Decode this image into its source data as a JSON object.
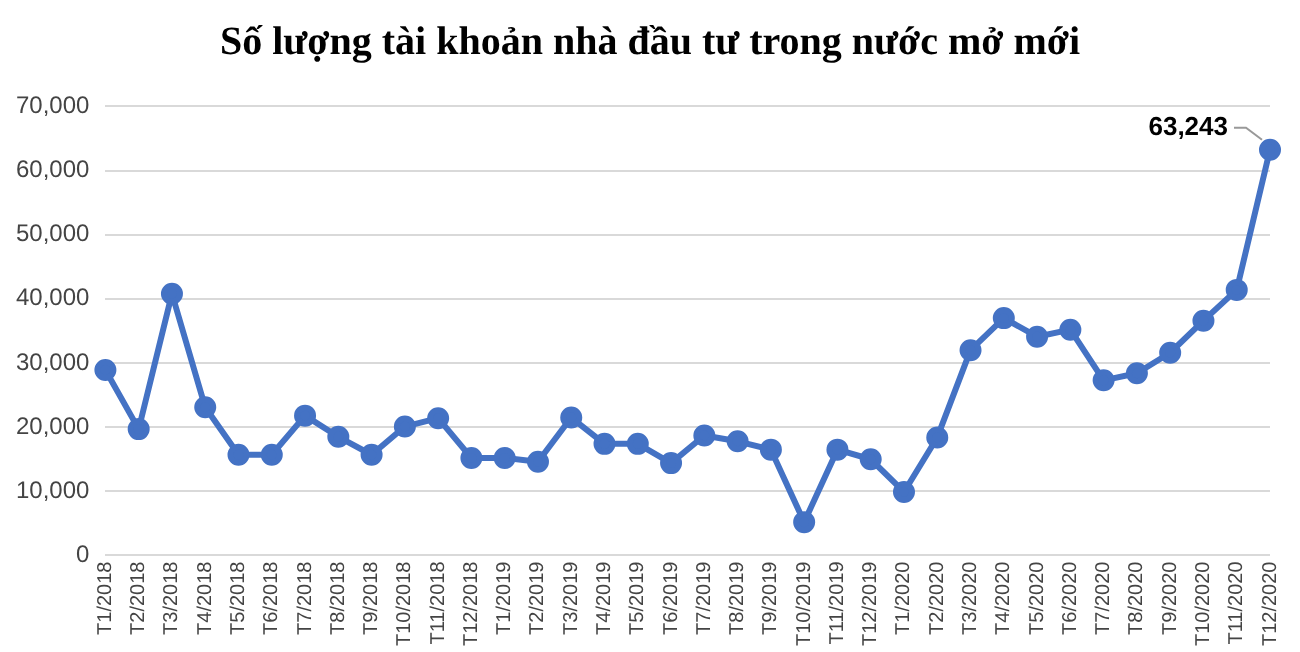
{
  "chart_data": {
    "type": "line",
    "title": "Số lượng tài khoản nhà đầu tư trong nước mở mới",
    "categories": [
      "T1/2018",
      "T2/2018",
      "T3/2018",
      "T4/2018",
      "T5/2018",
      "T6/2018",
      "T7/2018",
      "T8/2018",
      "T9/2018",
      "T10/2018",
      "T11/2018",
      "T12/2018",
      "T1/2019",
      "T2/2019",
      "T3/2019",
      "T4/2019",
      "T5/2019",
      "T6/2019",
      "T7/2019",
      "T8/2019",
      "T9/2019",
      "T10/2019",
      "T11/2019",
      "T12/2019",
      "T1/2020",
      "T2/2020",
      "T3/2020",
      "T4/2020",
      "T5/2020",
      "T6/2020",
      "T7/2020",
      "T8/2020",
      "T9/2020",
      "T10/2020",
      "T11/2020",
      "T12/2020"
    ],
    "series": [
      {
        "color": "#4472c4",
        "values": [
          28900,
          19700,
          40800,
          23100,
          15700,
          15700,
          21800,
          18500,
          15700,
          20100,
          21400,
          15200,
          15200,
          14600,
          21500,
          17400,
          17400,
          14400,
          18700,
          17800,
          16500,
          5200,
          16500,
          15000,
          9900,
          18400,
          32000,
          37000,
          34100,
          35200,
          27300,
          28400,
          31600,
          36600,
          41400,
          63243
        ],
        "value_labels": [
          null,
          null,
          null,
          null,
          null,
          null,
          null,
          null,
          null,
          null,
          null,
          null,
          null,
          null,
          null,
          null,
          null,
          null,
          null,
          null,
          null,
          null,
          null,
          null,
          null,
          null,
          null,
          null,
          null,
          null,
          null,
          null,
          null,
          null,
          null,
          "63,243"
        ]
      }
    ],
    "ylim": [
      0,
      70000
    ],
    "yticks": [
      {
        "value": 0,
        "label": "0"
      },
      {
        "value": 10000,
        "label": "10,000"
      },
      {
        "value": 20000,
        "label": "20,000"
      },
      {
        "value": 30000,
        "label": "30,000"
      },
      {
        "value": 40000,
        "label": "40,000"
      },
      {
        "value": 50000,
        "label": "50,000"
      },
      {
        "value": 60000,
        "label": "60,000"
      },
      {
        "value": 70000,
        "label": "70,000"
      }
    ],
    "grid": "y",
    "marker": "circle",
    "line_style": "solid"
  }
}
